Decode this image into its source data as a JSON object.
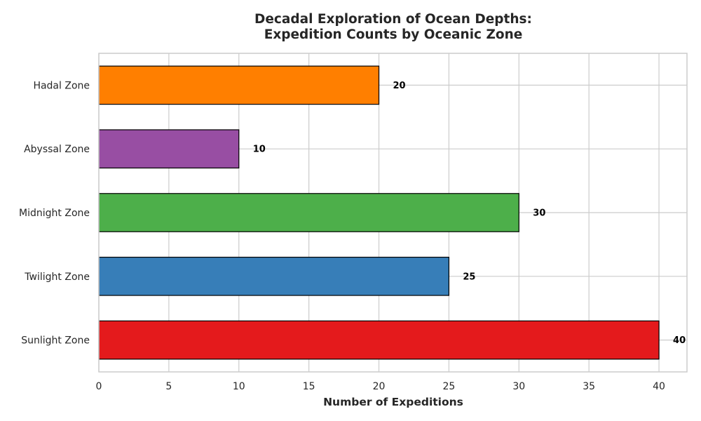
{
  "chart_data": {
    "type": "bar",
    "orientation": "horizontal",
    "title_lines": [
      "Decadal Exploration of Ocean Depths:",
      "Expedition Counts by Oceanic Zone"
    ],
    "xlabel": "Number of Expeditions",
    "ylabel": "",
    "categories": [
      "Sunlight Zone",
      "Twilight Zone",
      "Midnight Zone",
      "Abyssal Zone",
      "Hadal Zone"
    ],
    "values": [
      40,
      25,
      30,
      10,
      20
    ],
    "colors": [
      "#e41a1c",
      "#377eb8",
      "#4daf4a",
      "#984ea3",
      "#ff7f00"
    ],
    "xlim": [
      0,
      42
    ],
    "xticks": [
      0,
      5,
      10,
      15,
      20,
      25,
      30,
      35,
      40
    ],
    "grid": true,
    "show_data_labels": true
  }
}
